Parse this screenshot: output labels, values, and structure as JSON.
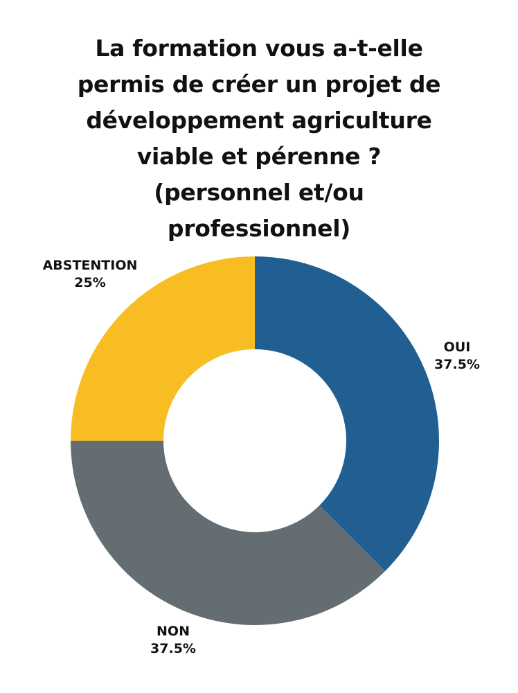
{
  "chart_data": {
    "type": "pie",
    "variant": "donut",
    "title_lines": [
      "La formation vous a-t-elle",
      "permis de créer un projet de",
      "développement agriculture",
      "viable et pérenne ?",
      "(personnel et/ou",
      "professionnel)"
    ],
    "slices": [
      {
        "name": "OUI",
        "value": 37.5,
        "label": "37.5%",
        "color": "#215F92"
      },
      {
        "name": "NON",
        "value": 37.5,
        "label": "37.5%",
        "color": "#636D72"
      },
      {
        "name": "ABSTENTION",
        "value": 25,
        "label": "25%",
        "color": "#F8BD22"
      }
    ],
    "start": "12 o'clock",
    "direction": "clockwise",
    "legend": "none"
  }
}
